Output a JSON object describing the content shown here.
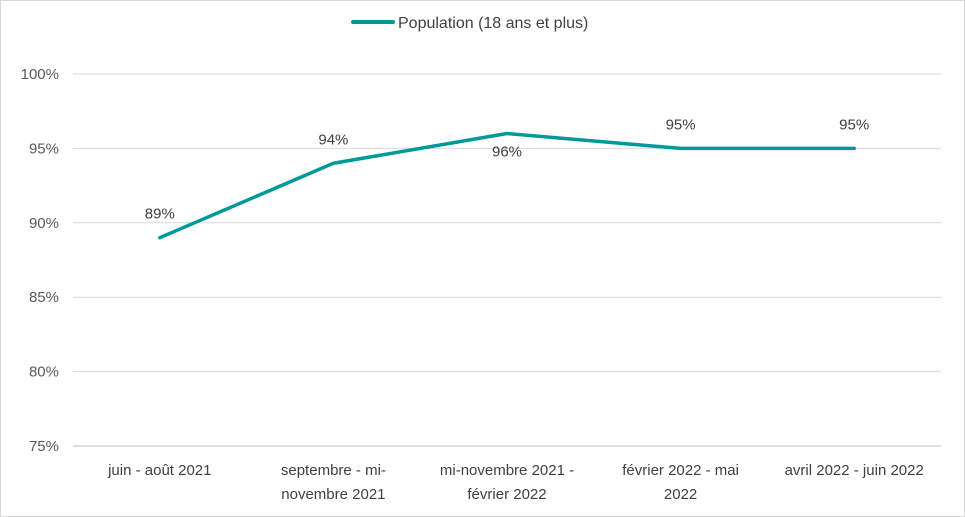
{
  "chart_data": {
    "type": "line",
    "title": "",
    "xlabel": "",
    "ylabel": "",
    "ylim": [
      75,
      100
    ],
    "yticks": [
      "75%",
      "80%",
      "85%",
      "90%",
      "95%",
      "100%"
    ],
    "grid": true,
    "legend_position": "top",
    "categories": [
      [
        "juin - août 2021"
      ],
      [
        "septembre - mi-",
        "novembre 2021"
      ],
      [
        "mi-novembre 2021 -",
        "février 2022"
      ],
      [
        "février 2022 - mai",
        "2022"
      ],
      [
        "avril 2022 - juin 2022"
      ]
    ],
    "series": [
      {
        "name": "Population (18 ans et plus)",
        "color": "#009999",
        "values": [
          89,
          94,
          96,
          95,
          95
        ],
        "labels": [
          "89%",
          "94%",
          "96%",
          "95%",
          "95%"
        ],
        "label_positions": [
          "above",
          "above",
          "below",
          "above",
          "above"
        ]
      }
    ]
  }
}
